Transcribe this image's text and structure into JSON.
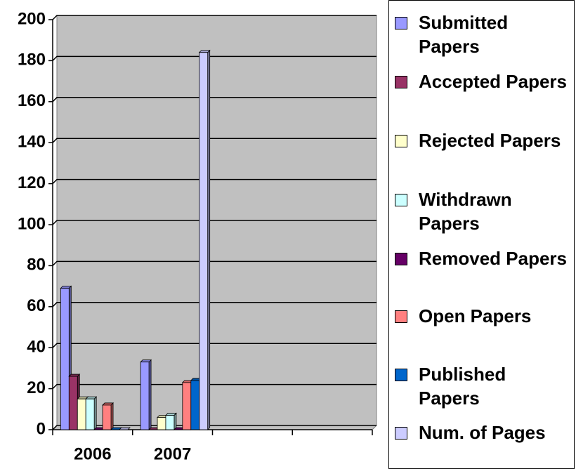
{
  "chart_data": {
    "type": "bar",
    "categories": [
      "2006",
      "2007",
      null,
      null
    ],
    "series": [
      {
        "name": "Submitted Papers",
        "color": "#9999ff",
        "values": [
          69,
          33,
          null,
          null
        ]
      },
      {
        "name": "Accepted Papers",
        "color": "#993366",
        "values": [
          26,
          0,
          null,
          null
        ]
      },
      {
        "name": "Rejected Papers",
        "color": "#ffffcc",
        "values": [
          15,
          6,
          null,
          null
        ]
      },
      {
        "name": "Withdrawn Papers",
        "color": "#ccffff",
        "values": [
          15,
          7,
          null,
          null
        ]
      },
      {
        "name": "Removed Papers",
        "color": "#660066",
        "values": [
          0,
          0,
          null,
          null
        ]
      },
      {
        "name": "Open Papers",
        "color": "#ff8080",
        "values": [
          12,
          23,
          null,
          null
        ]
      },
      {
        "name": "Published Papers",
        "color": "#0066cc",
        "values": [
          0,
          24,
          null,
          null
        ]
      },
      {
        "name": "Num. of Pages",
        "color": "#ccccff",
        "values": [
          0,
          184,
          null,
          null
        ]
      }
    ],
    "ylim": [
      0,
      200
    ],
    "yticks": [
      0,
      20,
      40,
      60,
      80,
      100,
      120,
      140,
      160,
      180,
      200
    ],
    "grid": true,
    "legend": "right"
  }
}
